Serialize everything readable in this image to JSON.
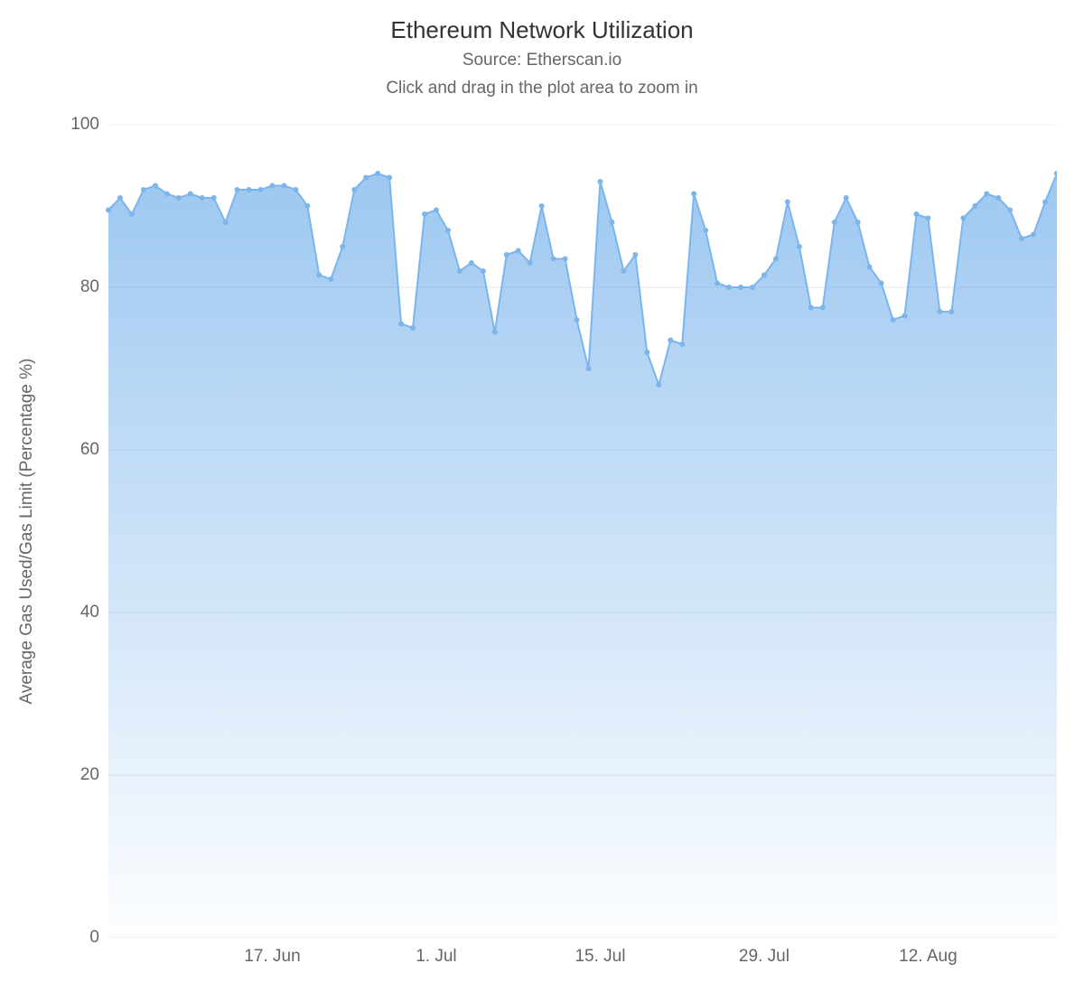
{
  "chart": {
    "type": "area",
    "title": "Ethereum Network Utilization",
    "subtitle_line1": "Source: Etherscan.io",
    "subtitle_line2": "Click and drag in the plot area to zoom in",
    "y_axis_title": "Average Gas Used/Gas Limit (Percentage %)",
    "title_fontsize": 26,
    "subtitle_fontsize": 19,
    "label_fontsize": 19,
    "title_color": "#333333",
    "subtitle_color": "#666666",
    "label_color": "#666666",
    "background_color": "#ffffff",
    "grid_color": "#e6e6e6",
    "line_color": "#7cb5ec",
    "area_gradient_top": "rgba(124,181,236,0.75)",
    "area_gradient_bottom": "rgba(124,181,236,0.02)",
    "marker_fill": "#7cb5ec",
    "marker_stroke": "#7cb5ec",
    "marker_radius": 2.5,
    "line_width": 2,
    "ylim": [
      0,
      100
    ],
    "yticks": [
      0,
      20,
      40,
      60,
      80,
      100
    ],
    "x_tick_labels": [
      "17. Jun",
      "1. Jul",
      "15. Jul",
      "29. Jul",
      "12. Aug"
    ],
    "x_tick_indices": [
      14,
      28,
      42,
      56,
      70
    ],
    "x_index_max": 81,
    "values": [
      89.5,
      91.0,
      89.0,
      92.0,
      92.5,
      91.5,
      91.0,
      91.5,
      91.0,
      91.0,
      88.0,
      92.0,
      92.0,
      92.0,
      92.5,
      92.5,
      92.0,
      90.0,
      81.5,
      81.0,
      85.0,
      92.0,
      93.5,
      94.0,
      93.5,
      75.5,
      75.0,
      89.0,
      89.5,
      87.0,
      82.0,
      83.0,
      82.0,
      74.5,
      84.0,
      84.5,
      83.0,
      90.0,
      83.5,
      83.5,
      76.0,
      70.0,
      93.0,
      88.0,
      82.0,
      84.0,
      72.0,
      68.0,
      73.5,
      73.0,
      91.5,
      87.0,
      80.5,
      80.0,
      80.0,
      80.0,
      81.5,
      83.5,
      90.5,
      85.0,
      77.5,
      77.5,
      88.0,
      91.0,
      88.0,
      82.5,
      80.5,
      76.0,
      76.5,
      89.0,
      88.5,
      77.0,
      77.0,
      88.5,
      90.0,
      91.5,
      91.0,
      89.5,
      86.0,
      86.5,
      90.5,
      94.0
    ]
  }
}
